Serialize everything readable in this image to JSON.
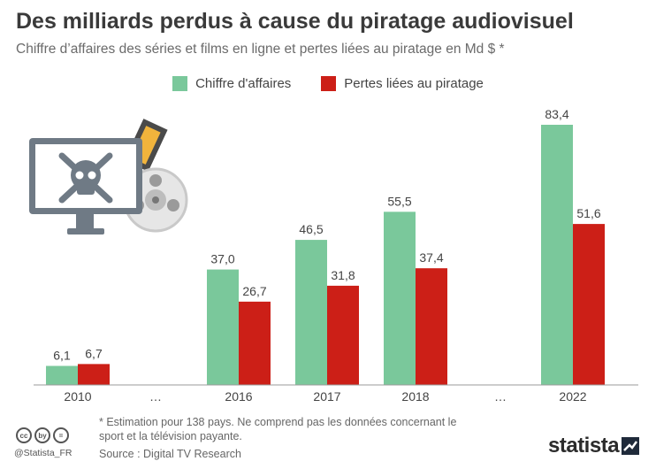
{
  "header": {
    "title": "Des milliards perdus à cause du piratage audiovisuel",
    "subtitle": "Chiffre d’affaires des séries et films en ligne et pertes liées au piratage en Md $ *"
  },
  "colors": {
    "revenue": "#7ac89b",
    "losses": "#cc1f17",
    "axis": "#9a9a9a",
    "text": "#444444"
  },
  "chart_data": {
    "type": "bar",
    "categories": [
      "2010",
      "…",
      "2016",
      "2017",
      "2018",
      "…",
      "2022"
    ],
    "series": [
      {
        "name": "Chiffre d'affaires",
        "values": [
          6.1,
          null,
          37.0,
          46.5,
          55.5,
          null,
          83.4
        ]
      },
      {
        "name": "Pertes liées au piratage",
        "values": [
          6.7,
          null,
          26.7,
          31.8,
          37.4,
          null,
          51.6
        ]
      }
    ],
    "value_labels": [
      [
        "6,1",
        null,
        "37,0",
        "46,5",
        "55,5",
        null,
        "83,4"
      ],
      [
        "6,7",
        null,
        "26,7",
        "31,8",
        "37,4",
        null,
        "51,6"
      ]
    ],
    "ylim": [
      0,
      90
    ],
    "grid": false,
    "legend_position": "top-center"
  },
  "footer": {
    "footnote": "* Estimation pour 138 pays. Ne comprend pas les données concernant le sport et la télévision payante.",
    "source": "Source : Digital TV Research",
    "handle": "@Statista_FR",
    "brand": "statista",
    "cc_icons": [
      "cc",
      "by",
      "="
    ]
  },
  "illustration": {
    "icons": [
      "computer-monitor-icon",
      "skull-crossbones-icon",
      "film-reel-icon",
      "film-strip-icon"
    ]
  }
}
